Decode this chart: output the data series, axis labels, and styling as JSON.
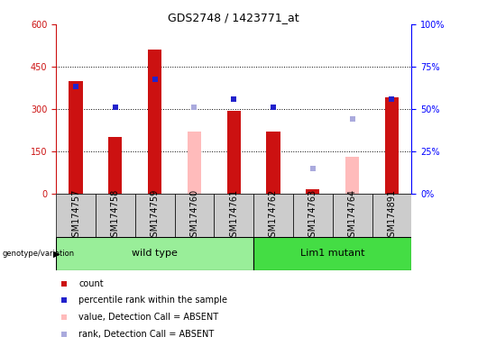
{
  "title": "GDS2748 / 1423771_at",
  "samples": [
    "GSM174757",
    "GSM174758",
    "GSM174759",
    "GSM174760",
    "GSM174761",
    "GSM174762",
    "GSM174763",
    "GSM174764",
    "GSM174891"
  ],
  "count_values": [
    400,
    200,
    510,
    0,
    295,
    220,
    15,
    0,
    340
  ],
  "absent_value": [
    0,
    0,
    0,
    220,
    0,
    0,
    0,
    130,
    0
  ],
  "percentile_rank_left": [
    380,
    305,
    405,
    0,
    335,
    305,
    0,
    0,
    335
  ],
  "absent_rank_left": [
    0,
    0,
    0,
    305,
    0,
    0,
    90,
    265,
    0
  ],
  "ylim_left": [
    0,
    600
  ],
  "yticks_left": [
    0,
    150,
    300,
    450,
    600
  ],
  "yticks_right": [
    0,
    25,
    50,
    75,
    100
  ],
  "ytick_labels_right": [
    "0%",
    "25%",
    "50%",
    "75%",
    "100%"
  ],
  "count_color": "#cc1111",
  "absent_value_color": "#ffbbbb",
  "percentile_color": "#2222cc",
  "absent_rank_color": "#aaaadd",
  "bg_color": "#cccccc",
  "wt_color": "#99ee99",
  "mutant_color": "#44dd44",
  "legend_items": [
    {
      "label": "count",
      "color": "#cc1111",
      "marker": "s"
    },
    {
      "label": "percentile rank within the sample",
      "color": "#2222cc",
      "marker": "s"
    },
    {
      "label": "value, Detection Call = ABSENT",
      "color": "#ffbbbb",
      "marker": "s"
    },
    {
      "label": "rank, Detection Call = ABSENT",
      "color": "#aaaadd",
      "marker": "s"
    }
  ],
  "bar_width": 0.35,
  "grid_color": "black",
  "grid_linestyle": ":",
  "grid_linewidth": 0.7,
  "title_fontsize": 9,
  "tick_fontsize": 7,
  "label_fontsize": 7,
  "group_fontsize": 8,
  "legend_fontsize": 7
}
